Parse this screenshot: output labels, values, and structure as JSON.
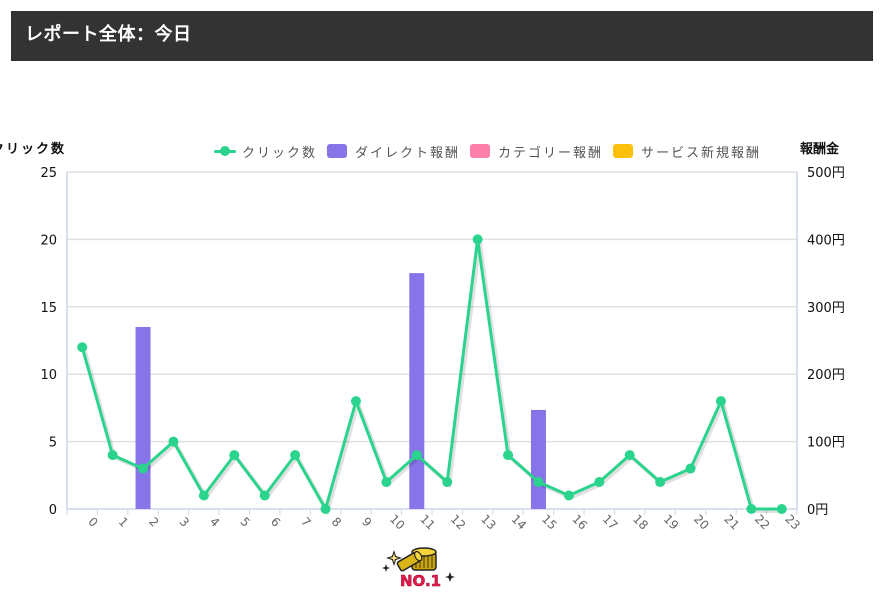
{
  "header": {
    "title": "レポート全体：今日"
  },
  "legend": [
    {
      "label": "クリック数",
      "type": "line",
      "color": "#2bd48c"
    },
    {
      "label": "ダイレクト報酬",
      "type": "bar",
      "color": "#8674e8"
    },
    {
      "label": "カテゴリー報酬",
      "type": "bar",
      "color": "#ff7fab"
    },
    {
      "label": "サービス新規報酬",
      "type": "bar",
      "color": "#fbc00c"
    }
  ],
  "axes": {
    "left_title": "クリック数",
    "right_title": "報酬金",
    "left_ticks": [
      "0",
      "5",
      "10",
      "15",
      "20",
      "25"
    ],
    "right_ticks": [
      "0円",
      "100円",
      "200円",
      "300円",
      "400円",
      "500円"
    ]
  },
  "logo": {
    "text": "NO.1",
    "icon": "gold-coins-icon"
  },
  "chart_data": {
    "type": "bar+line",
    "title": "レポート全体：今日",
    "categories": [
      "0",
      "1",
      "2",
      "3",
      "4",
      "5",
      "6",
      "7",
      "8",
      "9",
      "10",
      "11",
      "12",
      "13",
      "14",
      "15",
      "16",
      "17",
      "18",
      "19",
      "20",
      "21",
      "22",
      "23"
    ],
    "series": [
      {
        "name": "クリック数",
        "type": "line",
        "axis": "left",
        "color": "#2bd48c",
        "values": [
          12,
          4,
          3,
          5,
          1,
          4,
          1,
          4,
          0,
          8,
          2,
          4,
          2,
          20,
          4,
          2,
          1,
          2,
          4,
          2,
          3,
          8,
          0,
          0
        ]
      },
      {
        "name": "ダイレクト報酬",
        "type": "bar",
        "axis": "right",
        "color": "#8674e8",
        "values": [
          0,
          0,
          270,
          0,
          0,
          0,
          0,
          0,
          0,
          0,
          0,
          350,
          0,
          0,
          0,
          147,
          0,
          0,
          0,
          0,
          0,
          0,
          0,
          0
        ]
      },
      {
        "name": "カテゴリー報酬",
        "type": "bar",
        "axis": "right",
        "color": "#ff7fab",
        "values": [
          0,
          0,
          0,
          0,
          0,
          0,
          0,
          0,
          0,
          0,
          0,
          0,
          0,
          0,
          0,
          0,
          0,
          0,
          0,
          0,
          0,
          0,
          0,
          0
        ]
      },
      {
        "name": "サービス新規報酬",
        "type": "bar",
        "axis": "right",
        "color": "#fbc00c",
        "values": [
          0,
          0,
          0,
          0,
          0,
          0,
          0,
          0,
          0,
          0,
          0,
          0,
          0,
          0,
          0,
          0,
          0,
          0,
          0,
          0,
          0,
          0,
          0,
          0
        ]
      }
    ],
    "xlabel": "",
    "ylabel": "クリック数",
    "y2label": "報酬金",
    "ylim": [
      0,
      25
    ],
    "y2lim": [
      0,
      500
    ],
    "grid": true,
    "legend_position": "top"
  }
}
